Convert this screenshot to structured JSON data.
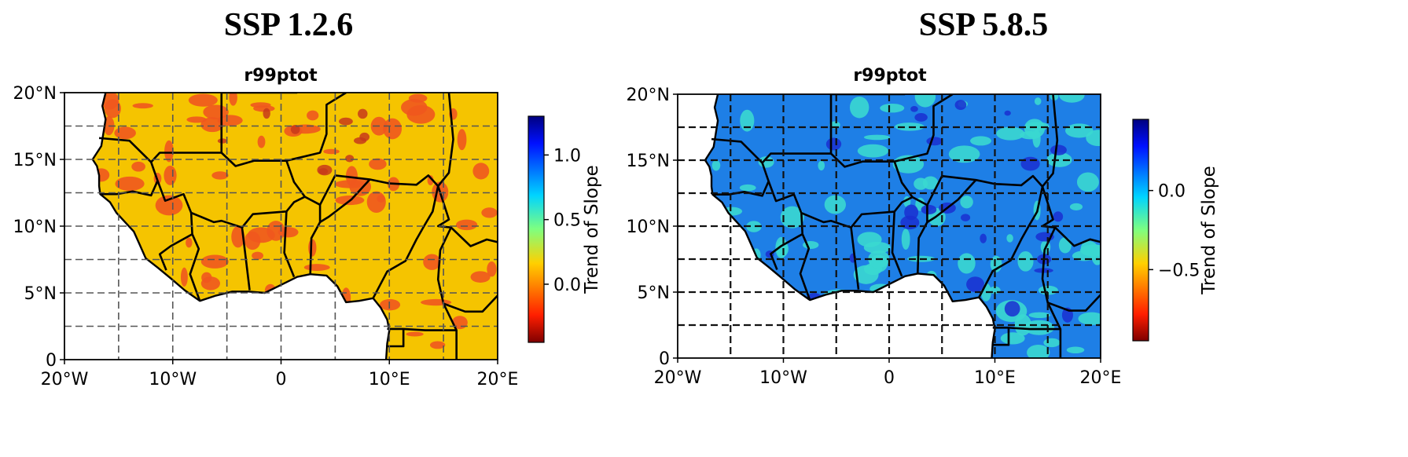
{
  "panels": [
    {
      "scenario": "SSP 1.2.6",
      "title": "r99ptot",
      "x_ticks": [
        "20°W",
        "10°W",
        "0",
        "10°E",
        "20°E"
      ],
      "y_ticks": [
        "20°N",
        "15°N",
        "10°N",
        "5°N",
        "0"
      ],
      "colorbar": {
        "label": "Trend of Slope",
        "ticks": [
          "1.0",
          "0.5",
          "0.0"
        ],
        "tick_values": [
          1.0,
          0.5,
          0.0
        ],
        "range": [
          -0.45,
          1.3
        ]
      },
      "dominant_color": "#f5c400",
      "patch_color": "#f0581e"
    },
    {
      "scenario": "SSP 5.8.5",
      "title": "r99ptot",
      "x_ticks": [
        "20°W",
        "10°W",
        "0",
        "10°E",
        "20°E"
      ],
      "y_ticks": [
        "20°N",
        "15°N",
        "10°N",
        "5°N",
        "0"
      ],
      "colorbar": {
        "label": "Trend of Slope",
        "ticks": [
          "0.0",
          "−0.5"
        ],
        "tick_values": [
          0.0,
          -0.5
        ],
        "range": [
          -0.95,
          0.45
        ]
      },
      "dominant_color": "#1e7fe6",
      "patch_color": "#3ad8d0"
    }
  ],
  "colormap": "jet",
  "gridlines": "dashed",
  "projection": "PlateCarree",
  "lon_range": [
    -20,
    20
  ],
  "lat_range": [
    0,
    20
  ]
}
